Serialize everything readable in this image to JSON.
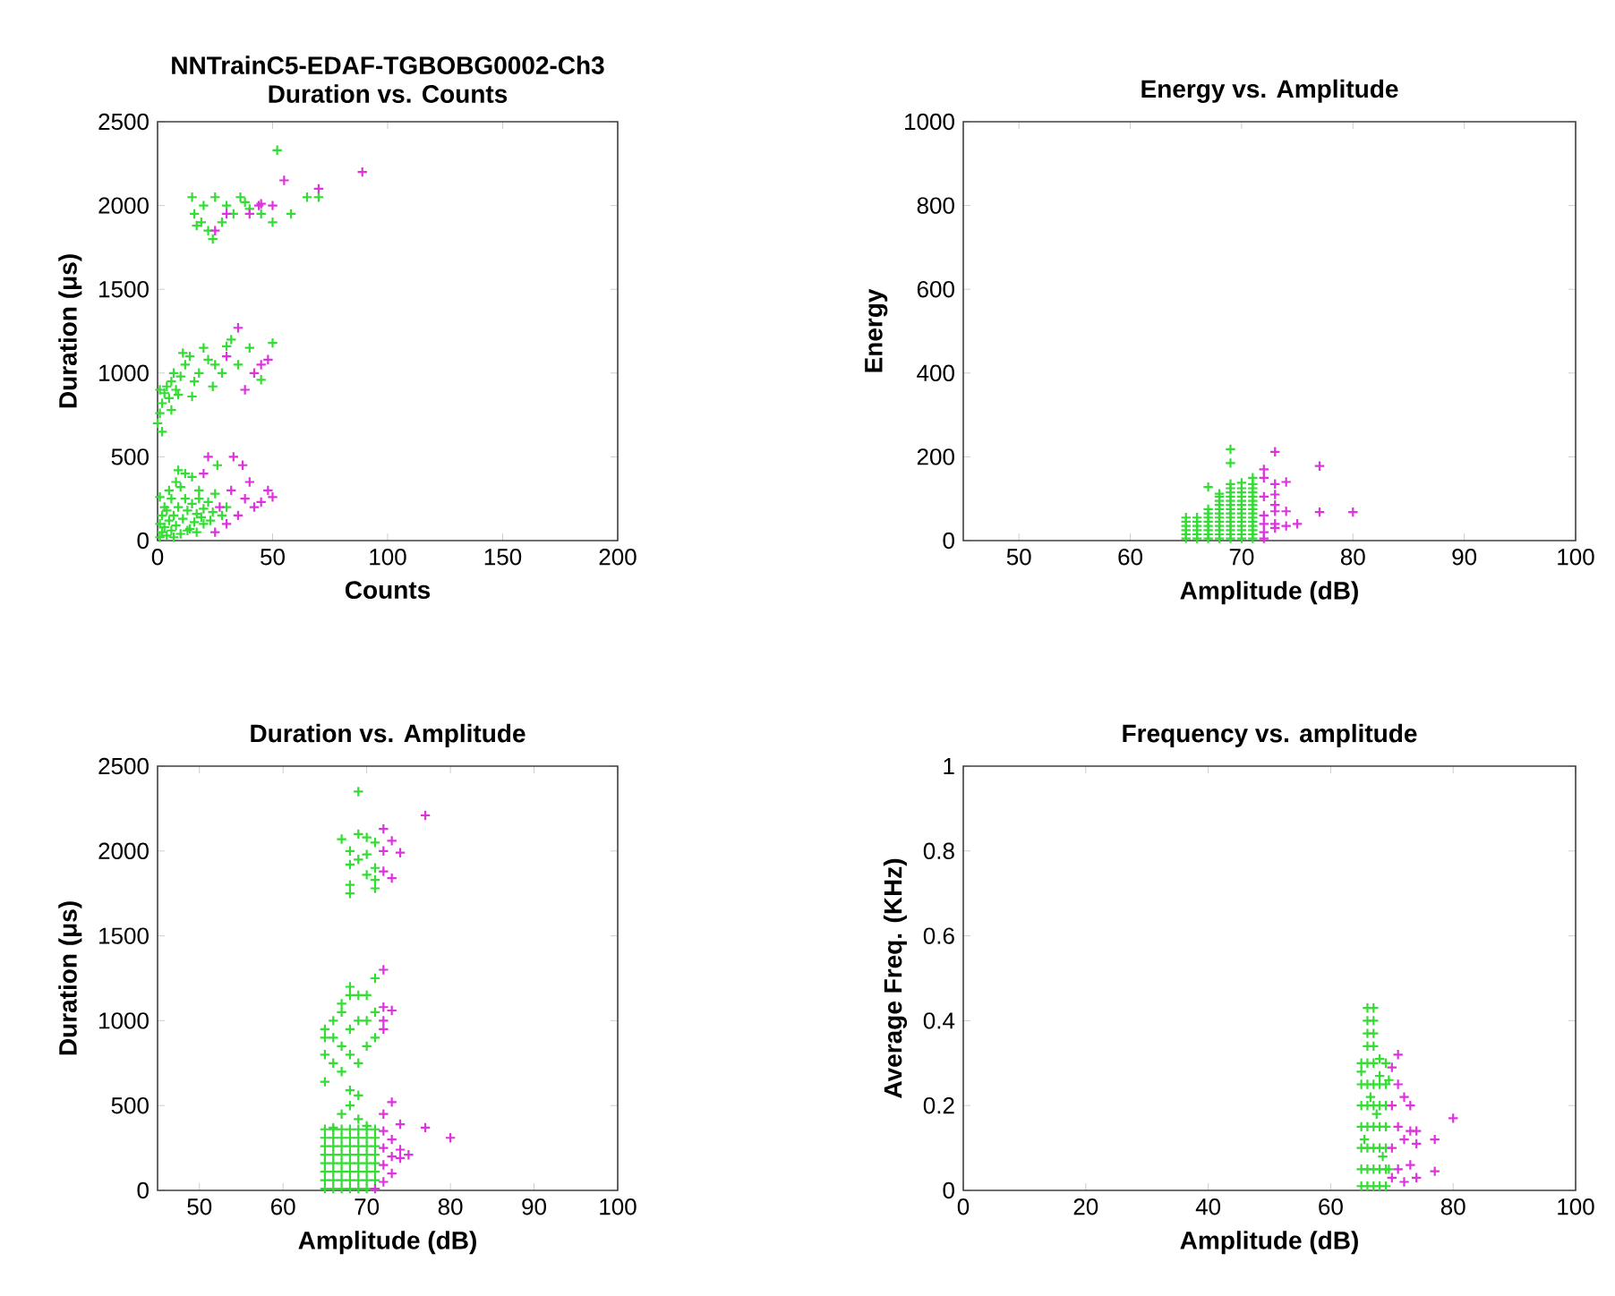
{
  "chart_data": [
    {
      "type": "scatter",
      "title": "NNTrainC5-EDAF-TGBOBG0002-Ch3",
      "subtitle": "Duration vs. Counts",
      "xlabel": "Counts",
      "ylabel": "Duration (μs)",
      "xlim": [
        0,
        200
      ],
      "ylim": [
        0,
        2500
      ],
      "xticks": [
        0,
        50,
        100,
        150,
        200
      ],
      "yticks": [
        0,
        500,
        1000,
        1500,
        2000,
        2500
      ],
      "marker": "cross",
      "series": [
        {
          "color": "#33dd33",
          "x": [
            1,
            2,
            3,
            4,
            5,
            6,
            7,
            8,
            9,
            10,
            11,
            12,
            13,
            14,
            15,
            16,
            17,
            18,
            19,
            20,
            22,
            24,
            25,
            3,
            5,
            8,
            12,
            2,
            6,
            10,
            15,
            18,
            20,
            1,
            4,
            7,
            13,
            17,
            23,
            28,
            30,
            26,
            1,
            9,
            0,
            1,
            2,
            3,
            4,
            5,
            6,
            7,
            8,
            10,
            12,
            14,
            16,
            18,
            20,
            22,
            25,
            28,
            30,
            35,
            40,
            45,
            50,
            2,
            6,
            9,
            15,
            24,
            32,
            1,
            11,
            15,
            16,
            17,
            20,
            22,
            25,
            28,
            30,
            33,
            36,
            40,
            45,
            50,
            52,
            58,
            65,
            70,
            24,
            19,
            38
          ],
          "values": [
            20,
            50,
            80,
            30,
            120,
            60,
            150,
            90,
            200,
            40,
            130,
            250,
            180,
            70,
            220,
            110,
            160,
            300,
            140,
            190,
            230,
            170,
            280,
            200,
            300,
            350,
            400,
            150,
            250,
            320,
            380,
            250,
            100,
            100,
            180,
            20,
            60,
            50,
            120,
            150,
            200,
            450,
            260,
            420,
            700,
            760,
            820,
            880,
            920,
            850,
            950,
            1000,
            900,
            980,
            1050,
            1100,
            950,
            1000,
            1150,
            1080,
            1050,
            1000,
            1160,
            1050,
            1150,
            960,
            1180,
            650,
            780,
            870,
            860,
            920,
            1200,
            900,
            1120,
            2050,
            1950,
            1880,
            2000,
            1850,
            2050,
            1900,
            2000,
            1950,
            2050,
            1980,
            1950,
            1900,
            2330,
            1950,
            2050,
            2050,
            1800,
            1900,
            2020
          ]
        },
        {
          "color": "#dd33dd",
          "x": [
            25,
            30,
            32,
            35,
            38,
            40,
            42,
            45,
            48,
            27,
            20,
            33,
            37,
            50,
            22,
            35,
            38,
            42,
            45,
            48,
            30,
            25,
            30,
            40,
            45,
            50,
            55,
            70,
            89,
            44
          ],
          "values": [
            50,
            100,
            300,
            150,
            250,
            350,
            200,
            230,
            300,
            200,
            400,
            500,
            450,
            260,
            500,
            1270,
            900,
            1000,
            1050,
            1080,
            1100,
            1850,
            1950,
            1950,
            2010,
            2000,
            2150,
            2100,
            2200,
            2000
          ]
        }
      ]
    },
    {
      "type": "scatter",
      "title": "Energy vs. Amplitude",
      "xlabel": "Amplitude (dB)",
      "ylabel": "Energy",
      "xlim": [
        45,
        100
      ],
      "ylim": [
        0,
        1000
      ],
      "xticks": [
        50,
        60,
        70,
        80,
        90,
        100
      ],
      "yticks": [
        0,
        200,
        400,
        600,
        800,
        1000
      ],
      "marker": "cross",
      "series": [
        {
          "color": "#33dd33",
          "x": [
            65,
            65,
            65,
            65,
            65,
            65,
            66,
            66,
            66,
            66,
            66,
            66,
            67,
            67,
            67,
            67,
            67,
            67,
            67,
            67,
            67,
            68,
            68,
            68,
            68,
            68,
            68,
            68,
            68,
            68,
            68,
            68,
            68,
            69,
            69,
            69,
            69,
            69,
            69,
            69,
            69,
            69,
            69,
            69,
            69,
            69,
            69,
            69,
            69,
            70,
            70,
            70,
            70,
            70,
            70,
            70,
            70,
            70,
            70,
            70,
            70,
            70,
            70,
            71,
            71,
            71,
            71,
            71,
            71,
            71,
            71,
            71,
            71,
            71,
            71,
            71,
            71,
            71
          ],
          "values": [
            5,
            15,
            25,
            35,
            45,
            55,
            5,
            15,
            25,
            35,
            45,
            55,
            5,
            15,
            25,
            35,
            45,
            55,
            65,
            75,
            128,
            5,
            15,
            25,
            35,
            45,
            55,
            65,
            75,
            85,
            95,
            105,
            112,
            5,
            15,
            25,
            35,
            45,
            55,
            65,
            75,
            85,
            95,
            105,
            115,
            125,
            135,
            185,
            218,
            5,
            15,
            25,
            35,
            45,
            55,
            65,
            75,
            85,
            95,
            105,
            115,
            125,
            138,
            5,
            15,
            25,
            35,
            45,
            55,
            65,
            75,
            85,
            95,
            105,
            115,
            125,
            135,
            150
          ]
        },
        {
          "color": "#dd33dd",
          "x": [
            72,
            72,
            72,
            72,
            72,
            72,
            72,
            73,
            73,
            73,
            73,
            73,
            73,
            73,
            74,
            74,
            74,
            75,
            77,
            77,
            80
          ],
          "values": [
            5,
            20,
            40,
            60,
            105,
            150,
            170,
            30,
            40,
            70,
            85,
            110,
            135,
            212,
            35,
            70,
            140,
            40,
            68,
            178,
            68
          ]
        }
      ]
    },
    {
      "type": "scatter",
      "title": "Duration vs. Amplitude",
      "xlabel": "Amplitude (dB)",
      "ylabel": "Duration (μs)",
      "xlim": [
        45,
        100
      ],
      "ylim": [
        0,
        2500
      ],
      "xticks": [
        50,
        60,
        70,
        80,
        90,
        100
      ],
      "yticks": [
        0,
        500,
        1000,
        1500,
        2000,
        2500
      ],
      "marker": "cross",
      "series": [
        {
          "color": "#33dd33",
          "x": [
            65,
            65,
            65,
            65,
            65,
            65,
            65,
            65,
            66,
            66,
            66,
            66,
            66,
            66,
            66,
            66,
            67,
            67,
            67,
            67,
            67,
            67,
            67,
            67,
            68,
            68,
            68,
            68,
            68,
            68,
            68,
            68,
            69,
            69,
            69,
            69,
            69,
            69,
            69,
            69,
            70,
            70,
            70,
            70,
            70,
            70,
            70,
            70,
            71,
            71,
            71,
            71,
            71,
            71,
            71,
            71,
            68,
            68,
            69,
            67,
            69,
            66,
            70,
            65,
            65,
            65,
            65,
            66,
            66,
            66,
            67,
            67,
            67,
            67,
            68,
            68,
            68,
            68,
            69,
            69,
            69,
            70,
            70,
            70,
            71,
            71,
            71,
            69,
            67,
            68,
            68,
            68,
            68,
            69,
            69,
            70,
            70,
            70,
            71,
            71,
            71,
            71
          ],
          "values": [
            10,
            60,
            110,
            160,
            210,
            260,
            310,
            360,
            10,
            60,
            110,
            160,
            210,
            260,
            310,
            360,
            10,
            60,
            110,
            160,
            210,
            260,
            310,
            360,
            10,
            60,
            110,
            160,
            210,
            260,
            310,
            360,
            10,
            60,
            110,
            160,
            210,
            260,
            310,
            360,
            10,
            60,
            110,
            160,
            210,
            260,
            310,
            360,
            10,
            60,
            110,
            160,
            210,
            260,
            310,
            360,
            500,
            590,
            560,
            450,
            420,
            370,
            380,
            640,
            800,
            900,
            950,
            750,
            900,
            1000,
            700,
            850,
            1050,
            1100,
            800,
            950,
            1150,
            1200,
            750,
            1000,
            1150,
            850,
            1000,
            1150,
            900,
            1050,
            1250,
            2350,
            2070,
            2000,
            1920,
            1800,
            1750,
            2100,
            1950,
            2080,
            1980,
            1860,
            2050,
            1900,
            1830,
            1780
          ]
        },
        {
          "color": "#dd33dd",
          "x": [
            71,
            72,
            72,
            72,
            72,
            72,
            73,
            73,
            73,
            73,
            74,
            74,
            74,
            75,
            77,
            80,
            72,
            72,
            72,
            72,
            73,
            72,
            72,
            72,
            73,
            73,
            74,
            77
          ],
          "values": [
            10,
            50,
            150,
            250,
            350,
            450,
            100,
            200,
            300,
            520,
            190,
            240,
            390,
            210,
            370,
            310,
            950,
            1080,
            1300,
            1000,
            1060,
            2130,
            2000,
            1880,
            2060,
            1840,
            1990,
            2210
          ]
        }
      ]
    },
    {
      "type": "scatter",
      "title": "Frequency vs. amplitude",
      "xlabel": "Amplitude (dB)",
      "ylabel": "Average Freq. (KHz)",
      "xlim": [
        0,
        100
      ],
      "ylim": [
        0,
        1
      ],
      "xticks": [
        0,
        20,
        40,
        60,
        80,
        100
      ],
      "yticks": [
        0,
        0.2,
        0.4,
        0.6,
        0.8,
        1
      ],
      "marker": "cross",
      "series": [
        {
          "color": "#33dd33",
          "x": [
            65,
            65,
            65,
            65,
            65,
            65,
            65,
            66,
            66,
            66,
            66,
            66,
            66,
            66,
            67,
            67,
            67,
            67,
            67,
            67,
            67,
            68,
            68,
            68,
            68,
            68,
            68,
            68,
            69,
            69,
            69,
            69,
            69,
            69,
            69,
            65,
            66,
            66,
            66,
            66,
            67,
            67,
            67,
            67,
            68,
            65.5,
            66.5,
            67.5,
            68.5,
            69.5,
            69.5
          ],
          "values": [
            0.01,
            0.05,
            0.1,
            0.15,
            0.2,
            0.25,
            0.3,
            0.01,
            0.05,
            0.1,
            0.15,
            0.2,
            0.25,
            0.3,
            0.01,
            0.05,
            0.1,
            0.15,
            0.2,
            0.25,
            0.3,
            0.01,
            0.05,
            0.1,
            0.15,
            0.2,
            0.25,
            0.27,
            0.01,
            0.05,
            0.1,
            0.15,
            0.2,
            0.25,
            0.3,
            0.28,
            0.43,
            0.4,
            0.37,
            0.34,
            0.43,
            0.4,
            0.37,
            0.34,
            0.31,
            0.12,
            0.22,
            0.18,
            0.08,
            0.26,
            0.05
          ]
        },
        {
          "color": "#dd33dd",
          "x": [
            70,
            70,
            70,
            70,
            71,
            71,
            71,
            71,
            72,
            72,
            72,
            73,
            73,
            73,
            74,
            74,
            74,
            77,
            77,
            80
          ],
          "values": [
            0.29,
            0.2,
            0.1,
            0.03,
            0.32,
            0.25,
            0.15,
            0.05,
            0.22,
            0.12,
            0.02,
            0.2,
            0.14,
            0.06,
            0.14,
            0.11,
            0.03,
            0.12,
            0.045,
            0.17
          ]
        }
      ]
    }
  ]
}
